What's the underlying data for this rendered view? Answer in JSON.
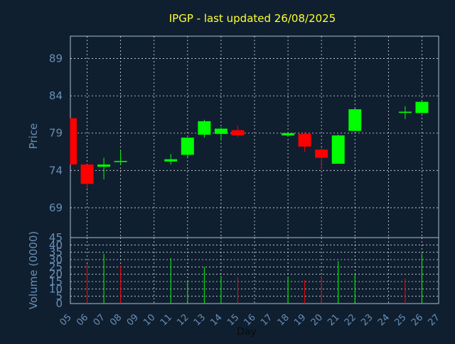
{
  "chart_data": [
    {
      "type": "candlestick",
      "title": "IPGP - last updated 26/08/2025",
      "ylabel": "Price",
      "ylim": [
        65,
        92
      ],
      "yticks": [
        69,
        74,
        79,
        84,
        89
      ],
      "grid": true,
      "colors": {
        "up": "#00ff00",
        "down": "#ff0000",
        "background": "#0f1f30",
        "title": "#ffff33",
        "axis_text": "#6a8fb5"
      },
      "candles": [
        {
          "day": "05",
          "open": 81.0,
          "close": 74.8,
          "high": 81.0,
          "low": 74.8
        },
        {
          "day": "06",
          "open": 74.8,
          "close": 72.2,
          "high": 74.8,
          "low": 71.6
        },
        {
          "day": "07",
          "open": 74.5,
          "close": 74.8,
          "high": 75.7,
          "low": 72.8
        },
        {
          "day": "08",
          "open": 75.2,
          "close": 75.2,
          "high": 76.7,
          "low": 74.8
        },
        {
          "day": "11",
          "open": 75.2,
          "close": 75.5,
          "high": 76.2,
          "low": 74.8
        },
        {
          "day": "12",
          "open": 76.1,
          "close": 78.4,
          "high": 78.4,
          "low": 75.8
        },
        {
          "day": "13",
          "open": 78.8,
          "close": 80.6,
          "high": 80.8,
          "low": 78.4
        },
        {
          "day": "14",
          "open": 78.9,
          "close": 79.6,
          "high": 79.8,
          "low": 78.0
        },
        {
          "day": "15",
          "open": 79.4,
          "close": 78.7,
          "high": 80.0,
          "low": 78.5
        },
        {
          "day": "18",
          "open": 78.7,
          "close": 79.0,
          "high": 79.1,
          "low": 78.5
        },
        {
          "day": "19",
          "open": 78.9,
          "close": 77.2,
          "high": 79.1,
          "low": 76.5
        },
        {
          "day": "20",
          "open": 76.8,
          "close": 75.7,
          "high": 77.0,
          "low": 74.2
        },
        {
          "day": "21",
          "open": 74.9,
          "close": 78.7,
          "high": 78.8,
          "low": 74.9
        },
        {
          "day": "22",
          "open": 79.3,
          "close": 82.2,
          "high": 82.3,
          "low": 79.3
        },
        {
          "day": "25",
          "open": 81.8,
          "close": 81.8,
          "high": 82.6,
          "low": 80.9
        },
        {
          "day": "26",
          "open": 81.7,
          "close": 83.2,
          "high": 83.2,
          "low": 81.7
        }
      ]
    },
    {
      "type": "bar",
      "ylabel": "Volume (0000)",
      "xlabel": "Day",
      "ylim": [
        0,
        45
      ],
      "ytick_labels": [
        "0",
        "5",
        "10",
        "15",
        "20",
        "25",
        "30",
        "35",
        "40",
        "45"
      ],
      "grid": true,
      "categories": [
        "05",
        "06",
        "07",
        "08",
        "09",
        "10",
        "11",
        "12",
        "13",
        "14",
        "15",
        "16",
        "17",
        "18",
        "19",
        "20",
        "21",
        "22",
        "23",
        "24",
        "25",
        "26",
        "27"
      ],
      "volumes": [
        {
          "day": "06",
          "value": 27,
          "direction": "down"
        },
        {
          "day": "07",
          "value": 34,
          "direction": "up"
        },
        {
          "day": "08",
          "value": 26,
          "direction": "down"
        },
        {
          "day": "11",
          "value": 31,
          "direction": "up"
        },
        {
          "day": "12",
          "value": 16,
          "direction": "up"
        },
        {
          "day": "13",
          "value": 25,
          "direction": "up"
        },
        {
          "day": "14",
          "value": 19,
          "direction": "up"
        },
        {
          "day": "15",
          "value": 18,
          "direction": "down"
        },
        {
          "day": "18",
          "value": 18,
          "direction": "up"
        },
        {
          "day": "19",
          "value": 16,
          "direction": "down"
        },
        {
          "day": "20",
          "value": 19,
          "direction": "down"
        },
        {
          "day": "21",
          "value": 29,
          "direction": "up"
        },
        {
          "day": "22",
          "value": 20,
          "direction": "up"
        },
        {
          "day": "25",
          "value": 17,
          "direction": "down"
        },
        {
          "day": "26",
          "value": 34,
          "direction": "up"
        }
      ]
    }
  ]
}
